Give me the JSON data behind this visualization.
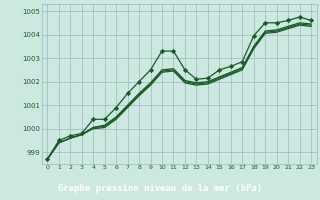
{
  "xlabel": "Graphe pression niveau de la mer (hPa)",
  "background_color": "#cce8e0",
  "plot_bg_color": "#cce8e0",
  "grid_color": "#99bbbb",
  "line_color": "#1a5c28",
  "label_bg_color": "#2d7a3a",
  "ylim": [
    998.5,
    1005.3
  ],
  "xlim": [
    -0.5,
    23.5
  ],
  "yticks": [
    999,
    1000,
    1001,
    1002,
    1003,
    1004,
    1005
  ],
  "xticks": [
    0,
    1,
    2,
    3,
    4,
    5,
    6,
    7,
    8,
    9,
    10,
    11,
    12,
    13,
    14,
    15,
    16,
    17,
    18,
    19,
    20,
    21,
    22,
    23
  ],
  "series_marker": [
    998.7,
    999.5,
    999.7,
    999.8,
    1000.4,
    1000.4,
    1000.9,
    1001.5,
    1002.0,
    1002.5,
    1003.3,
    1003.3,
    1002.5,
    1002.1,
    1002.15,
    1002.5,
    1002.65,
    1002.85,
    1003.95,
    1004.5,
    1004.5,
    1004.6,
    1004.75,
    1004.6
  ],
  "series_smooth1": [
    998.7,
    999.4,
    999.6,
    999.75,
    1000.05,
    1000.15,
    1000.5,
    1001.0,
    1001.5,
    1001.95,
    1002.5,
    1002.55,
    1002.05,
    1001.95,
    1002.0,
    1002.2,
    1002.4,
    1002.6,
    1003.5,
    1004.15,
    1004.2,
    1004.35,
    1004.5,
    1004.45
  ],
  "series_smooth2": [
    998.7,
    999.4,
    999.6,
    999.75,
    1000.05,
    1000.1,
    1000.45,
    1000.95,
    1001.45,
    1001.9,
    1002.45,
    1002.5,
    1002.0,
    1001.9,
    1001.95,
    1002.15,
    1002.35,
    1002.55,
    1003.45,
    1004.1,
    1004.15,
    1004.3,
    1004.45,
    1004.4
  ],
  "series_smooth3": [
    998.7,
    999.4,
    999.6,
    999.75,
    1000.0,
    1000.05,
    1000.4,
    1000.9,
    1001.4,
    1001.85,
    1002.4,
    1002.45,
    1001.95,
    1001.85,
    1001.9,
    1002.1,
    1002.3,
    1002.5,
    1003.4,
    1004.05,
    1004.1,
    1004.25,
    1004.4,
    1004.35
  ]
}
